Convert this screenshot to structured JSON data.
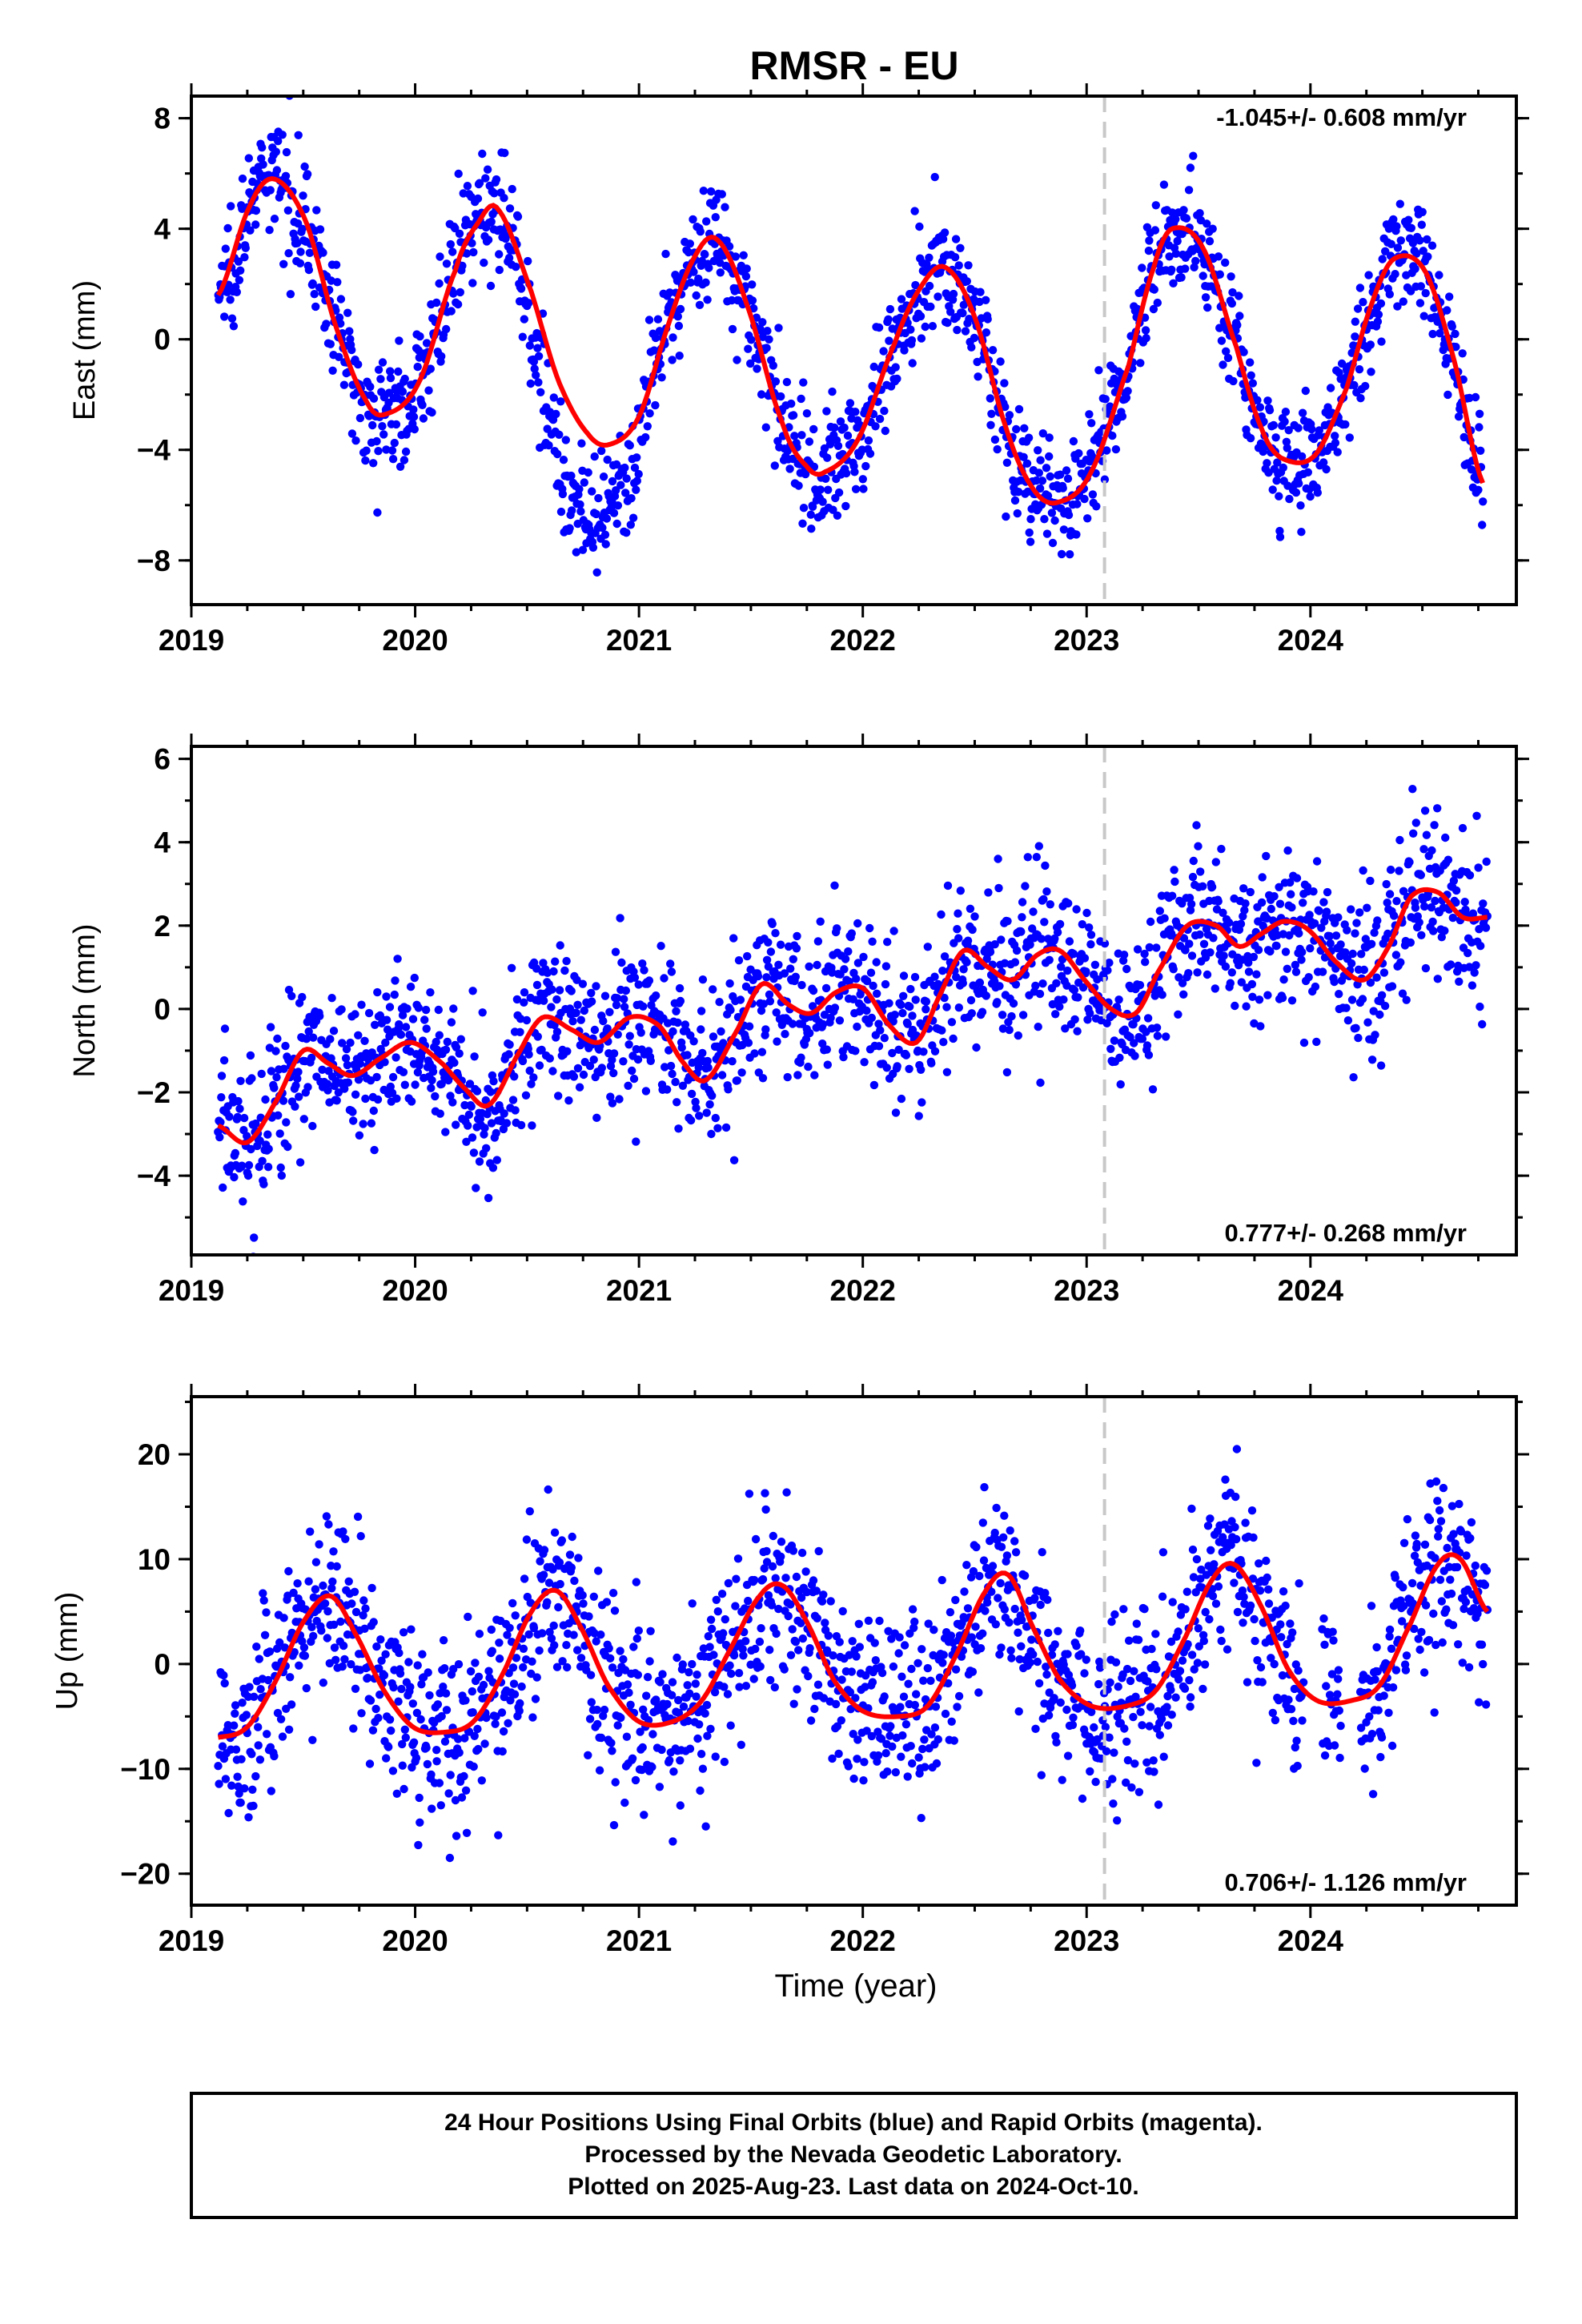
{
  "title": "RMSR - EU",
  "xlabel": "Time (year)",
  "footer": {
    "line1": "24 Hour Positions Using Final Orbits (blue) and Rapid Orbits (magenta).",
    "line2": "Processed by the Nevada Geodetic Laboratory.",
    "line3": "Plotted on 2025-Aug-23. Last data on 2024-Oct-10."
  },
  "colors": {
    "points": "#0000ff",
    "fit": "#ff0000",
    "equipment_change": "#c8c8c8",
    "frame": "#000000"
  },
  "chart_data": [
    {
      "type": "scatter",
      "component": "East",
      "ylabel": "East (mm)",
      "rate_label": "-1.045+/- 0.608 mm/yr",
      "xlim": [
        2019.0,
        2024.92
      ],
      "ylim": [
        -9.6,
        8.8
      ],
      "xticks": [
        2019,
        2020,
        2021,
        2022,
        2023,
        2024
      ],
      "xtick_labels": [
        "2019",
        "2020",
        "2021",
        "2022",
        "2023",
        "2024"
      ],
      "yticks": [
        -8,
        -4,
        0,
        4,
        8
      ],
      "ytick_labels": [
        "−8",
        "−4",
        "0",
        "4",
        "8"
      ],
      "equipment_change_x": 2023.08,
      "fit_x": [
        2019.12,
        2019.26,
        2019.37,
        2019.51,
        2019.64,
        2019.78,
        2019.87,
        2020.02,
        2020.18,
        2020.28,
        2020.37,
        2020.52,
        2020.64,
        2020.77,
        2020.87,
        2021.0,
        2021.13,
        2021.25,
        2021.35,
        2021.48,
        2021.64,
        2021.75,
        2021.83,
        2021.98,
        2022.14,
        2022.26,
        2022.37,
        2022.5,
        2022.64,
        2022.76,
        2022.87,
        2023.02,
        2023.19,
        2023.3,
        2023.38,
        2023.52,
        2023.67,
        2023.78,
        2023.87,
        2024.02,
        2024.16,
        2024.27,
        2024.37,
        2024.51,
        2024.64,
        2024.77
      ],
      "fit_y": [
        1.6,
        4.8,
        5.8,
        4.3,
        0.6,
        -2.2,
        -2.7,
        -1.5,
        2.5,
        4.2,
        4.7,
        1.7,
        -1.5,
        -3.4,
        -3.8,
        -2.8,
        0.5,
        3.0,
        3.6,
        1.3,
        -3.0,
        -4.6,
        -4.8,
        -3.6,
        -0.2,
        1.9,
        2.6,
        0.8,
        -3.2,
        -5.4,
        -5.9,
        -4.8,
        -0.9,
        2.6,
        4.0,
        3.3,
        -0.3,
        -3.2,
        -4.3,
        -4.2,
        -1.8,
        1.2,
        2.9,
        2.5,
        -0.7,
        -5.2
      ],
      "point_count": 1700
    },
    {
      "type": "scatter",
      "component": "North",
      "ylabel": "North (mm)",
      "rate_label": "0.777+/- 0.268 mm/yr",
      "xlim": [
        2019.0,
        2024.92
      ],
      "ylim": [
        -5.9,
        6.3
      ],
      "xticks": [
        2019,
        2020,
        2021,
        2022,
        2023,
        2024
      ],
      "xtick_labels": [
        "2019",
        "2020",
        "2021",
        "2022",
        "2023",
        "2024"
      ],
      "yticks": [
        -4,
        -2,
        0,
        2,
        4,
        6
      ],
      "ytick_labels": [
        "−4",
        "−2",
        "0",
        "2",
        "4",
        "6"
      ],
      "equipment_change_x": 2023.08,
      "fit_x": [
        2019.12,
        2019.25,
        2019.38,
        2019.5,
        2019.61,
        2019.72,
        2019.84,
        2019.98,
        2020.12,
        2020.22,
        2020.33,
        2020.47,
        2020.57,
        2020.7,
        2020.82,
        2020.96,
        2021.09,
        2021.2,
        2021.3,
        2021.44,
        2021.55,
        2021.67,
        2021.77,
        2021.88,
        2022.0,
        2022.12,
        2022.24,
        2022.35,
        2022.45,
        2022.56,
        2022.67,
        2022.78,
        2022.88,
        2022.99,
        2023.11,
        2023.22,
        2023.32,
        2023.45,
        2023.58,
        2023.68,
        2023.78,
        2023.88,
        2023.99,
        2024.12,
        2024.24,
        2024.35,
        2024.45,
        2024.57,
        2024.68,
        2024.79
      ],
      "fit_y": [
        -2.8,
        -3.2,
        -2.2,
        -1.0,
        -1.3,
        -1.6,
        -1.2,
        -0.8,
        -1.3,
        -1.9,
        -2.3,
        -1.0,
        -0.2,
        -0.5,
        -0.8,
        -0.2,
        -0.4,
        -1.3,
        -1.7,
        -0.5,
        0.6,
        0.1,
        -0.1,
        0.4,
        0.5,
        -0.4,
        -0.8,
        0.4,
        1.4,
        1.0,
        0.7,
        1.3,
        1.4,
        0.7,
        0.0,
        -0.1,
        0.9,
        2.0,
        2.0,
        1.5,
        1.8,
        2.1,
        1.9,
        1.1,
        0.7,
        1.5,
        2.7,
        2.8,
        2.2,
        2.2
      ],
      "point_count": 1700
    },
    {
      "type": "scatter",
      "component": "Up",
      "ylabel": "Up (mm)",
      "rate_label": "0.706+/- 1.126 mm/yr",
      "xlim": [
        2019.0,
        2024.92
      ],
      "ylim": [
        -23,
        25.5
      ],
      "xticks": [
        2019,
        2020,
        2021,
        2022,
        2023,
        2024
      ],
      "xtick_labels": [
        "2019",
        "2020",
        "2021",
        "2022",
        "2023",
        "2024"
      ],
      "yticks": [
        -20,
        -10,
        0,
        10,
        20
      ],
      "ytick_labels": [
        "−20",
        "−10",
        "0",
        "10",
        "20"
      ],
      "equipment_change_x": 2023.08,
      "fit_x": [
        2019.12,
        2019.25,
        2019.38,
        2019.5,
        2019.62,
        2019.73,
        2019.86,
        2019.99,
        2020.13,
        2020.26,
        2020.39,
        2020.52,
        2020.63,
        2020.74,
        2020.86,
        2021.0,
        2021.15,
        2021.28,
        2021.41,
        2021.54,
        2021.64,
        2021.75,
        2021.87,
        2022.0,
        2022.16,
        2022.29,
        2022.42,
        2022.55,
        2022.65,
        2022.76,
        2022.88,
        2023.02,
        2023.18,
        2023.31,
        2023.44,
        2023.56,
        2023.66,
        2023.78,
        2023.9,
        2024.03,
        2024.18,
        2024.31,
        2024.45,
        2024.57,
        2024.67,
        2024.79
      ],
      "fit_y": [
        -7.0,
        -6.0,
        -1.5,
        4.0,
        6.5,
        3.0,
        -2.5,
        -6.0,
        -6.5,
        -5.5,
        -1.0,
        5.0,
        7.0,
        3.5,
        -2.0,
        -5.5,
        -5.5,
        -3.5,
        1.5,
        6.5,
        7.5,
        4.0,
        -1.5,
        -4.5,
        -5.0,
        -4.0,
        1.0,
        7.0,
        8.5,
        3.5,
        -1.5,
        -4.0,
        -4.0,
        -2.5,
        2.5,
        8.0,
        9.5,
        5.5,
        -0.5,
        -3.5,
        -3.5,
        -2.0,
        4.0,
        9.5,
        10.0,
        5.0
      ],
      "point_count": 1700
    }
  ]
}
